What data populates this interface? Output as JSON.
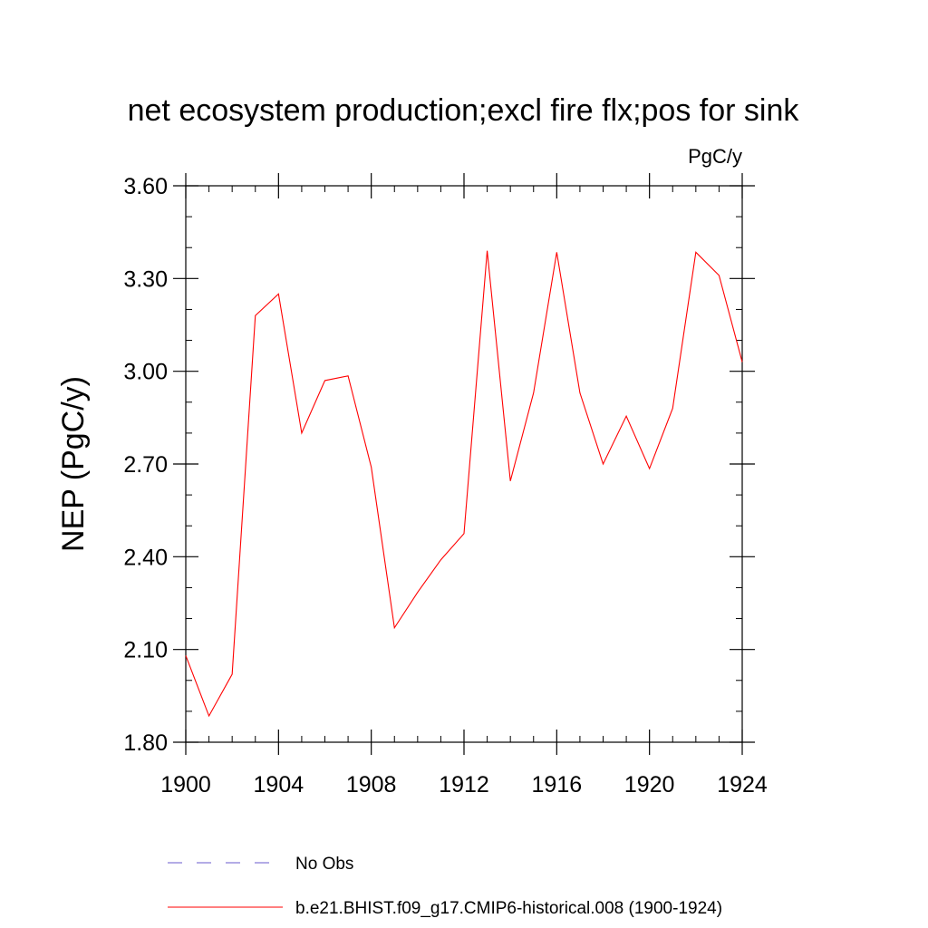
{
  "chart_data": {
    "type": "line",
    "title": "net ecosystem production;excl fire flx;pos for sink",
    "units_label": "PgC/y",
    "ylabel": "NEP  (PgC/y)",
    "xlabel": "",
    "xlim": [
      1900,
      1924
    ],
    "ylim": [
      1.8,
      3.6
    ],
    "x_ticks": [
      "1900",
      "1904",
      "1908",
      "1912",
      "1916",
      "1920",
      "1924"
    ],
    "y_ticks": [
      "1.80",
      "2.10",
      "2.40",
      "2.70",
      "3.00",
      "3.30",
      "3.60"
    ],
    "x": [
      1900,
      1901,
      1902,
      1903,
      1904,
      1905,
      1906,
      1907,
      1908,
      1909,
      1910,
      1911,
      1912,
      1913,
      1914,
      1915,
      1916,
      1917,
      1918,
      1919,
      1920,
      1921,
      1922,
      1923,
      1924
    ],
    "series": [
      {
        "name": "b.e21.BHIST.f09_g17.CMIP6-historical.008 (1900-1924)",
        "color": "#ff0000",
        "values": [
          2.08,
          1.885,
          2.02,
          3.18,
          3.25,
          2.8,
          2.97,
          2.985,
          2.69,
          2.17,
          2.285,
          2.39,
          2.475,
          3.39,
          2.645,
          2.93,
          3.385,
          2.93,
          2.7,
          2.855,
          2.685,
          2.88,
          3.385,
          3.31,
          3.03
        ]
      }
    ],
    "legend": [
      {
        "label": "No Obs",
        "color": "#6a5acd",
        "style": "dashed"
      },
      {
        "label": "b.e21.BHIST.f09_g17.CMIP6-historical.008 (1900-1924)",
        "color": "#ff0000",
        "style": "solid"
      }
    ],
    "grid": false,
    "legend_position": "bottom"
  }
}
